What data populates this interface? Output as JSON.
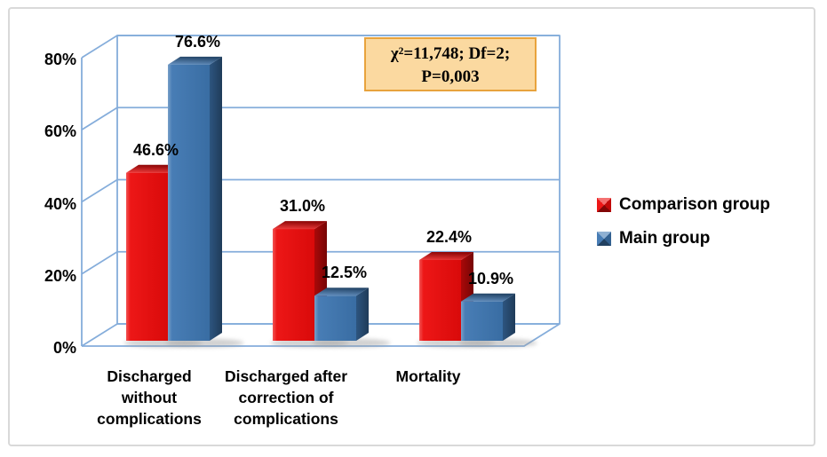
{
  "chart_data": {
    "type": "bar",
    "variant": "3d-clustered-column",
    "title": "",
    "xlabel": "",
    "ylabel": "",
    "categories": [
      [
        "Discharged",
        "without",
        "complications"
      ],
      [
        "Discharged after",
        "correction of",
        "complications"
      ],
      [
        "Mortality"
      ]
    ],
    "series": [
      {
        "name": "Comparison group",
        "color": "#ec0b0b",
        "values": [
          46.6,
          31.0,
          22.4
        ],
        "labels": [
          "46.6%",
          "31.0%",
          "22.4%"
        ]
      },
      {
        "name": "Main group",
        "color": "#3e76b1",
        "values": [
          76.6,
          12.5,
          10.9
        ],
        "labels": [
          "76.6%",
          "12.5%",
          "10.9%"
        ]
      }
    ],
    "y_axis": {
      "ticks": [
        "0%",
        "20%",
        "40%",
        "60%",
        "80%"
      ],
      "tick_values": [
        0,
        20,
        40,
        60,
        80
      ],
      "min": 0,
      "max": 80
    },
    "grid": true,
    "legend_position": "right",
    "annotation": {
      "line1": "χ²=11,748; Df=2;",
      "line2": "P=0,003",
      "bg_color": "#fbd9a0",
      "border_color": "#e8a33d"
    },
    "wall_line_color": "#85addb",
    "shadow_color": "#9a9a9a"
  }
}
